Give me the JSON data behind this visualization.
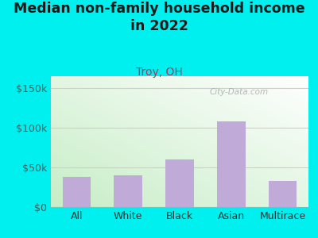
{
  "title": "Median non-family household income\nin 2022",
  "subtitle": "Troy, OH",
  "categories": [
    "All",
    "White",
    "Black",
    "Asian",
    "Multirace"
  ],
  "values": [
    38000,
    40000,
    60000,
    108000,
    33000
  ],
  "bar_color": "#c0aad8",
  "title_color": "#1a1a1a",
  "subtitle_color": "#b03060",
  "outer_bg": "#00efef",
  "plot_bg_topleft": "#e8f5e9",
  "plot_bg_topright": "#ffffff",
  "plot_bg_bottomleft": "#c8e6c9",
  "plot_bg_bottomright": "#e8f5e9",
  "ylabel_color": "#555555",
  "xlabel_color": "#333333",
  "yticks": [
    0,
    50000,
    100000,
    150000
  ],
  "ytick_labels": [
    "$0",
    "$50k",
    "$100k",
    "$150k"
  ],
  "ylim": [
    0,
    165000
  ],
  "watermark": "City-Data.com",
  "watermark_color": "#aaaaaa",
  "grid_color": "#f0c0c0",
  "title_fontsize": 12.5,
  "subtitle_fontsize": 10,
  "tick_fontsize": 9,
  "bar_width": 0.55
}
